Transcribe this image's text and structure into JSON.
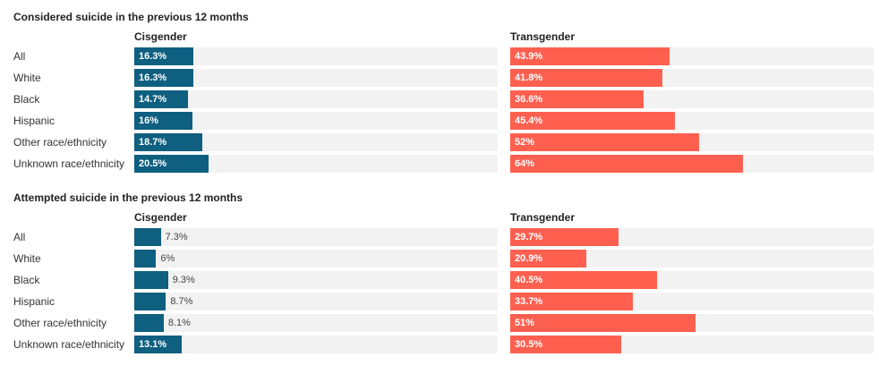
{
  "colors": {
    "cisgender": "#0e5f80",
    "transgender": "#ff5f4f",
    "track": "#f2f2f2"
  },
  "chart_data": [
    {
      "type": "bar",
      "title": "Considered suicide in the previous 12 months",
      "categories": [
        "All",
        "White",
        "Black",
        "Hispanic",
        "Other race/ethnicity",
        "Unknown race/ethnicity"
      ],
      "xlim": [
        0,
        100
      ],
      "series": [
        {
          "name": "Cisgender",
          "values": [
            16.3,
            16.3,
            14.7,
            16,
            18.7,
            20.5
          ],
          "labels": [
            "16.3%",
            "16.3%",
            "14.7%",
            "16%",
            "18.7%",
            "20.5%"
          ]
        },
        {
          "name": "Transgender",
          "values": [
            43.9,
            41.8,
            36.6,
            45.4,
            52,
            64
          ],
          "labels": [
            "43.9%",
            "41.8%",
            "36.6%",
            "45.4%",
            "52%",
            "64%"
          ]
        }
      ]
    },
    {
      "type": "bar",
      "title": "Attempted suicide in the previous 12 months",
      "categories": [
        "All",
        "White",
        "Black",
        "Hispanic",
        "Other race/ethnicity",
        "Unknown race/ethnicity"
      ],
      "xlim": [
        0,
        100
      ],
      "series": [
        {
          "name": "Cisgender",
          "values": [
            7.3,
            6,
            9.3,
            8.7,
            8.1,
            13.1
          ],
          "labels": [
            "7.3%",
            "6%",
            "9.3%",
            "8.7%",
            "8.1%",
            "13.1%"
          ]
        },
        {
          "name": "Transgender",
          "values": [
            29.7,
            20.9,
            40.5,
            33.7,
            51,
            30.5
          ],
          "labels": [
            "29.7%",
            "20.9%",
            "40.5%",
            "33.7%",
            "51%",
            "30.5%"
          ]
        }
      ]
    }
  ]
}
